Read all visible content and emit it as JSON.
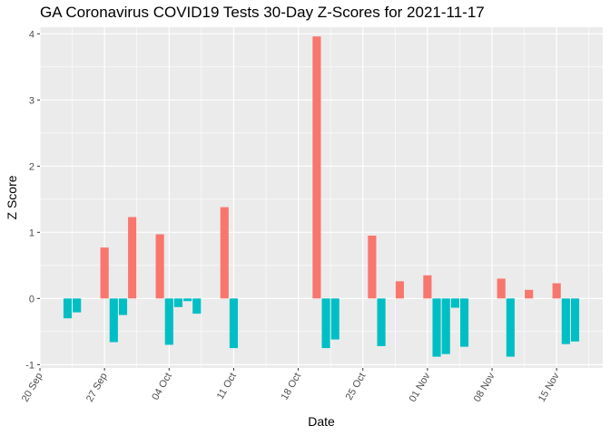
{
  "chart_data": {
    "type": "bar",
    "title": "GA Coronavirus COVID19 Tests 30-Day Z-Scores for 2021-11-17",
    "xlabel": "Date",
    "ylabel": "Z Score",
    "x_range": [
      "2021-09-20",
      "2021-11-20"
    ],
    "ylim": [
      -1.05,
      4.1
    ],
    "y_ticks": [
      -1,
      0,
      1,
      2,
      3,
      4
    ],
    "x_ticks": [
      {
        "date": "2021-09-20",
        "label": "20 Sep"
      },
      {
        "date": "2021-09-27",
        "label": "27 Sep"
      },
      {
        "date": "2021-10-04",
        "label": "04 Oct"
      },
      {
        "date": "2021-10-11",
        "label": "11 Oct"
      },
      {
        "date": "2021-10-18",
        "label": "18 Oct"
      },
      {
        "date": "2021-10-25",
        "label": "25 Oct"
      },
      {
        "date": "2021-11-01",
        "label": "01 Nov"
      },
      {
        "date": "2021-11-08",
        "label": "08 Nov"
      },
      {
        "date": "2021-11-15",
        "label": "15 Nov"
      }
    ],
    "grid": true,
    "legend": "none",
    "colors": {
      "positive": "#F8766D",
      "negative": "#00BFC4",
      "panel": "#EBEBEB",
      "grid": "#FFFFFF"
    },
    "bars": [
      {
        "date": "2021-09-23",
        "value": -0.3
      },
      {
        "date": "2021-09-24",
        "value": -0.21
      },
      {
        "date": "2021-09-27",
        "value": 0.77
      },
      {
        "date": "2021-09-28",
        "value": -0.66
      },
      {
        "date": "2021-09-29",
        "value": -0.25
      },
      {
        "date": "2021-09-30",
        "value": 1.23
      },
      {
        "date": "2021-10-03",
        "value": 0.97
      },
      {
        "date": "2021-10-04",
        "value": -0.7
      },
      {
        "date": "2021-10-05",
        "value": -0.13
      },
      {
        "date": "2021-10-06",
        "value": -0.04
      },
      {
        "date": "2021-10-07",
        "value": -0.23
      },
      {
        "date": "2021-10-10",
        "value": 1.38
      },
      {
        "date": "2021-10-11",
        "value": -0.75
      },
      {
        "date": "2021-10-20",
        "value": 3.96
      },
      {
        "date": "2021-10-21",
        "value": -0.75
      },
      {
        "date": "2021-10-22",
        "value": -0.62
      },
      {
        "date": "2021-10-26",
        "value": 0.95
      },
      {
        "date": "2021-10-27",
        "value": -0.72
      },
      {
        "date": "2021-10-29",
        "value": 0.26
      },
      {
        "date": "2021-11-01",
        "value": 0.35
      },
      {
        "date": "2021-11-02",
        "value": -0.88
      },
      {
        "date": "2021-11-03",
        "value": -0.84
      },
      {
        "date": "2021-11-04",
        "value": -0.14
      },
      {
        "date": "2021-11-05",
        "value": -0.73
      },
      {
        "date": "2021-11-09",
        "value": 0.3
      },
      {
        "date": "2021-11-10",
        "value": -0.88
      },
      {
        "date": "2021-11-12",
        "value": 0.13
      },
      {
        "date": "2021-11-15",
        "value": 0.23
      },
      {
        "date": "2021-11-16",
        "value": -0.69
      },
      {
        "date": "2021-11-17",
        "value": -0.65
      }
    ]
  }
}
